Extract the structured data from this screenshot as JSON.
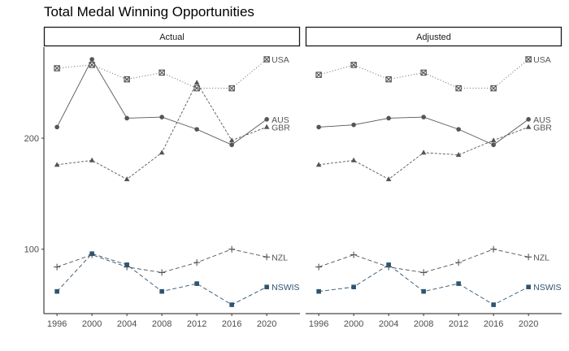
{
  "chart_data": {
    "type": "line",
    "title": "Total Medal Winning Opportunities",
    "xlabel": "",
    "ylabel": "",
    "x": [
      1996,
      2000,
      2004,
      2008,
      2012,
      2016,
      2020
    ],
    "xticks": [
      "1996",
      "2000",
      "2004",
      "2008",
      "2012",
      "2016",
      "2020"
    ],
    "yticks": [
      100,
      200
    ],
    "ytick_labels": [
      "100",
      "200"
    ],
    "ylim": [
      42,
      282
    ],
    "xlim": [
      1994.5,
      2023.8
    ],
    "grid": false,
    "legend": "direct-labels-right",
    "panels": [
      {
        "strip": "Actual",
        "series": [
          {
            "name": "USA",
            "marker": "square-x",
            "dash": "dotted",
            "color": "#555555",
            "values": [
              263,
              266,
              253,
              259,
              245,
              245,
              271
            ]
          },
          {
            "name": "AUS",
            "marker": "circle",
            "dash": "solid",
            "color": "#555555",
            "values": [
              210,
              271,
              218,
              219,
              208,
              194,
              217
            ]
          },
          {
            "name": "GBR",
            "marker": "triangle",
            "dash": "dashed",
            "color": "#555555",
            "values": [
              176,
              180,
              163,
              187,
              250,
              198,
              210
            ]
          },
          {
            "name": "NZL",
            "marker": "plus",
            "dash": "longdash",
            "color": "#555555",
            "values": [
              84,
              95,
              84,
              79,
              88,
              100,
              93
            ]
          },
          {
            "name": "NSWIS",
            "marker": "square",
            "dash": "longdash",
            "color": "#2e5470",
            "values": [
              62,
              96,
              86,
              62,
              69,
              50,
              66
            ]
          }
        ]
      },
      {
        "strip": "Adjusted",
        "series": [
          {
            "name": "USA",
            "marker": "square-x",
            "dash": "dotted",
            "color": "#555555",
            "values": [
              257,
              266,
              253,
              259,
              245,
              245,
              271
            ]
          },
          {
            "name": "AUS",
            "marker": "circle",
            "dash": "solid",
            "color": "#555555",
            "values": [
              210,
              212,
              218,
              219,
              208,
              194,
              217
            ]
          },
          {
            "name": "GBR",
            "marker": "triangle",
            "dash": "dashed",
            "color": "#555555",
            "values": [
              176,
              180,
              163,
              187,
              185,
              198,
              210
            ]
          },
          {
            "name": "NZL",
            "marker": "plus",
            "dash": "longdash",
            "color": "#555555",
            "values": [
              84,
              95,
              84,
              79,
              88,
              100,
              93
            ]
          },
          {
            "name": "NSWIS",
            "marker": "square",
            "dash": "longdash",
            "color": "#2e5470",
            "values": [
              62,
              66,
              86,
              62,
              69,
              50,
              66
            ]
          }
        ]
      }
    ]
  }
}
